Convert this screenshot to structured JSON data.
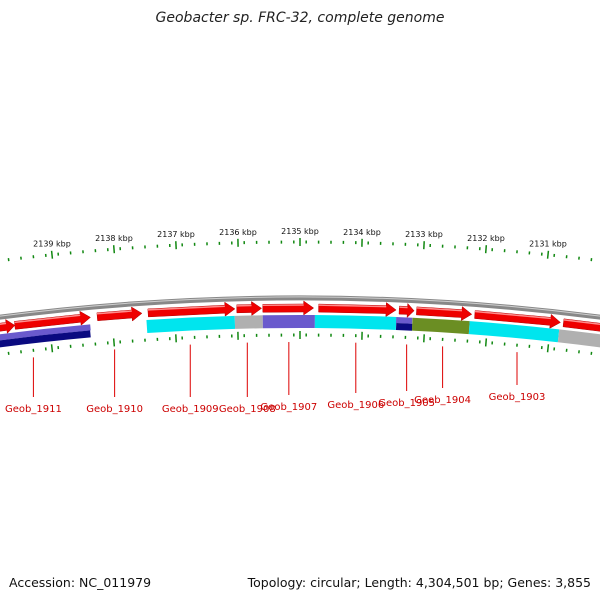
{
  "title": "Geobacter sp. FRC-32, complete genome",
  "accession": "Accession: NC_011979",
  "summary": "Topology: circular; Length: 4,304,501 bp; Genes: 3,855",
  "scale_unit": "kbp",
  "ticks": [
    {
      "kbp": 2139,
      "label": "2139 kbp"
    },
    {
      "kbp": 2138,
      "label": "2138 kbp"
    },
    {
      "kbp": 2137,
      "label": "2137 kbp"
    },
    {
      "kbp": 2136,
      "label": "2136 kbp"
    },
    {
      "kbp": 2135,
      "label": "2135 kbp"
    },
    {
      "kbp": 2134,
      "label": "2134 kbp"
    },
    {
      "kbp": 2133,
      "label": "2133 kbp"
    },
    {
      "kbp": 2132,
      "label": "2132 kbp"
    },
    {
      "kbp": 2131,
      "label": "2131 kbp"
    }
  ],
  "colors": {
    "forward_gene": "#ee0000",
    "backbone": "#888888",
    "scale_tick": "#118811",
    "gene_label": "#cc0000",
    "cyan": "#00e5ee",
    "gray": "#b0b0b0",
    "slate": "#6a5acd",
    "navy": "#0a0a80",
    "olive": "#6b8e23"
  },
  "genes": [
    {
      "id": "g1",
      "start_kbp": 2139.9,
      "end_kbp": 2139.6,
      "strand": "+",
      "ring": "outer"
    },
    {
      "id": "g2",
      "start_kbp": 2139.6,
      "end_kbp": 2138.38,
      "strand": "+",
      "ring": "outer"
    },
    {
      "id": "g3",
      "start_kbp": 2138.27,
      "end_kbp": 2137.55,
      "strand": "+",
      "ring": "outer"
    },
    {
      "id": "g4",
      "start_kbp": 2137.45,
      "end_kbp": 2136.05,
      "strand": "+",
      "ring": "outer"
    },
    {
      "id": "g5",
      "start_kbp": 2136.02,
      "end_kbp": 2135.62,
      "strand": "+",
      "ring": "outer"
    },
    {
      "id": "g6",
      "start_kbp": 2135.6,
      "end_kbp": 2134.78,
      "strand": "+",
      "ring": "outer"
    },
    {
      "id": "g7",
      "start_kbp": 2134.7,
      "end_kbp": 2133.45,
      "strand": "+",
      "ring": "outer"
    },
    {
      "id": "g8",
      "start_kbp": 2133.4,
      "end_kbp": 2133.16,
      "strand": "+",
      "ring": "outer"
    },
    {
      "id": "g9",
      "start_kbp": 2133.12,
      "end_kbp": 2132.23,
      "strand": "+",
      "ring": "outer"
    },
    {
      "id": "g10",
      "start_kbp": 2132.18,
      "end_kbp": 2130.8,
      "strand": "+",
      "ring": "outer"
    },
    {
      "id": "g11",
      "start_kbp": 2130.75,
      "end_kbp": 2129.9,
      "strand": "+",
      "ring": "outer"
    }
  ],
  "cog_blocks": [
    {
      "start_kbp": 2139.9,
      "end_kbp": 2138.38,
      "color": "slate",
      "ring": "cog_upper"
    },
    {
      "start_kbp": 2139.9,
      "end_kbp": 2138.38,
      "color": "navy",
      "ring": "cog_lower"
    },
    {
      "start_kbp": 2137.47,
      "end_kbp": 2136.05,
      "color": "cyan",
      "ring": "cog"
    },
    {
      "start_kbp": 2136.05,
      "end_kbp": 2135.6,
      "color": "gray",
      "ring": "cog"
    },
    {
      "start_kbp": 2135.6,
      "end_kbp": 2134.76,
      "color": "slate",
      "ring": "cog"
    },
    {
      "start_kbp": 2134.76,
      "end_kbp": 2133.45,
      "color": "cyan",
      "ring": "cog"
    },
    {
      "start_kbp": 2133.45,
      "end_kbp": 2133.19,
      "color": "slate",
      "ring": "cog_upper"
    },
    {
      "start_kbp": 2133.45,
      "end_kbp": 2133.19,
      "color": "navy",
      "ring": "cog_lower"
    },
    {
      "start_kbp": 2133.19,
      "end_kbp": 2132.27,
      "color": "olive",
      "ring": "cog"
    },
    {
      "start_kbp": 2132.27,
      "end_kbp": 2130.83,
      "color": "cyan",
      "ring": "cog"
    },
    {
      "start_kbp": 2130.83,
      "end_kbp": 2129.9,
      "color": "gray",
      "ring": "cog"
    }
  ],
  "gene_labels": [
    {
      "text": "Geob_1911",
      "kbp": 2139.3
    },
    {
      "text": "Geob_1910",
      "kbp": 2137.99
    },
    {
      "text": "Geob_1909",
      "kbp": 2136.77
    },
    {
      "text": "Geob_1908",
      "kbp": 2135.85
    },
    {
      "text": "Geob_1907",
      "kbp": 2135.18
    },
    {
      "text": "Geob_1906",
      "kbp": 2134.1
    },
    {
      "text": "Geob_1905",
      "kbp": 2133.28
    },
    {
      "text": "Geob_1904",
      "kbp": 2132.7
    },
    {
      "text": "Geob_1903",
      "kbp": 2131.5
    }
  ]
}
